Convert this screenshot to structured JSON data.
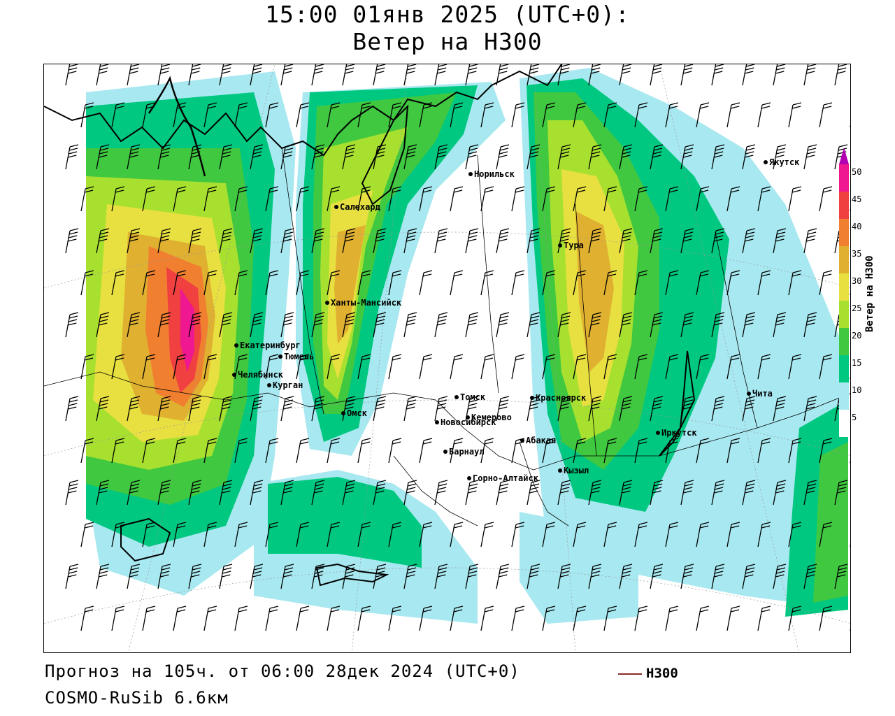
{
  "title": {
    "line1": "15:00 01янв 2025 (UTC+0):",
    "line2": "Ветер на H300"
  },
  "footer": {
    "forecast": "Прогноз на 105ч. от 06:00 28дек 2024 (UTC+0)",
    "model": "COSMO-RuSib 6.6км"
  },
  "legend": {
    "contour_label": "H300",
    "contour_color": "#8a2a2a"
  },
  "colorbar": {
    "label": "Ветер на H300",
    "ticks": [
      "50",
      "45",
      "40",
      "35",
      "30",
      "25",
      "20",
      "15",
      "10",
      "5"
    ],
    "colors": [
      "#b000b0",
      "#f01890",
      "#f04040",
      "#f08030",
      "#e0b030",
      "#e8e040",
      "#a8e030",
      "#40c840",
      "#00c880",
      "#a8e8f0",
      "#ffffff"
    ]
  },
  "cities": [
    {
      "name": "Якутск"
    },
    {
      "name": "Норильск"
    },
    {
      "name": "Салехард"
    },
    {
      "name": "Тура"
    },
    {
      "name": "Ханты-Мансийск"
    },
    {
      "name": "Екатеринбург"
    },
    {
      "name": "Тюмень"
    },
    {
      "name": "Челябинск"
    },
    {
      "name": "Курган"
    },
    {
      "name": "Омск"
    },
    {
      "name": "Томск"
    },
    {
      "name": "Красноярск"
    },
    {
      "name": "Новосибирск"
    },
    {
      "name": "Кемерово"
    },
    {
      "name": "Барнаул"
    },
    {
      "name": "Абакан"
    },
    {
      "name": "Иркутск"
    },
    {
      "name": "Чита"
    },
    {
      "name": "Горно-Алтайск"
    },
    {
      "name": "Кызыл"
    }
  ]
}
